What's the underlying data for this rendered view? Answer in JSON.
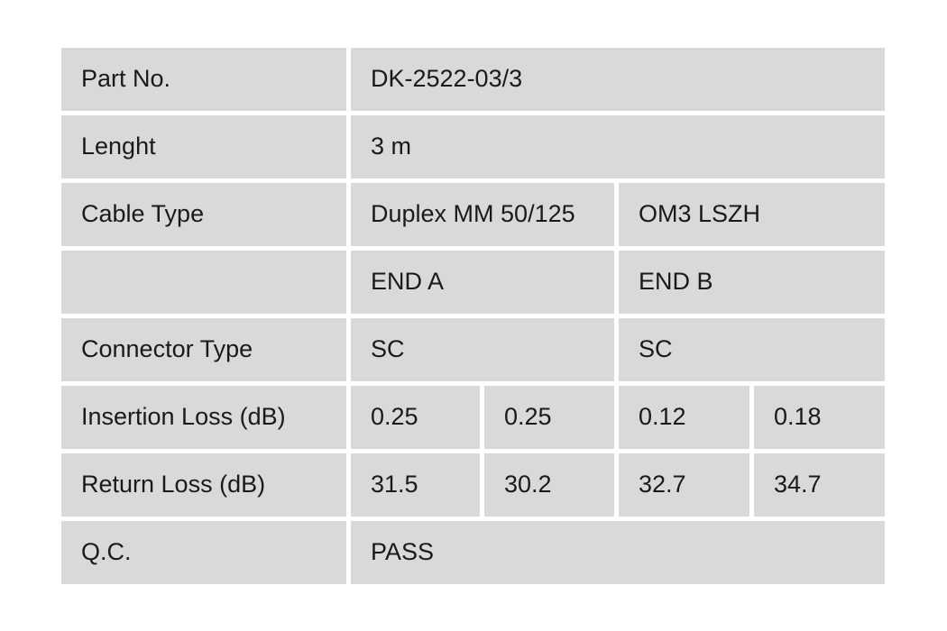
{
  "table": {
    "colors": {
      "page_bg": "#ffffff",
      "cell_bg": "#d9d9d9",
      "gap": "#ffffff",
      "text": "#1a1a1a"
    },
    "rows": [
      {
        "label": "Part No.",
        "value": "DK-2522-03/3"
      },
      {
        "label": "Lenght",
        "value": "3 m"
      },
      {
        "label": "Cable Type",
        "value_a": "Duplex MM 50/125",
        "value_b": "OM3 LSZH"
      },
      {
        "label": "",
        "value_a": "END A",
        "value_b": "END B"
      },
      {
        "label": "Connector Type",
        "value_a": "SC",
        "value_b": "SC"
      },
      {
        "label": "Insertion Loss (dB)",
        "end_a_1": "0.25",
        "end_a_2": "0.25",
        "end_b_1": "0.12",
        "end_b_2": "0.18"
      },
      {
        "label": "Return Loss (dB)",
        "end_a_1": "31.5",
        "end_a_2": "30.2",
        "end_b_1": "32.7",
        "end_b_2": "34.7"
      },
      {
        "label": "Q.C.",
        "value": "PASS"
      }
    ]
  }
}
